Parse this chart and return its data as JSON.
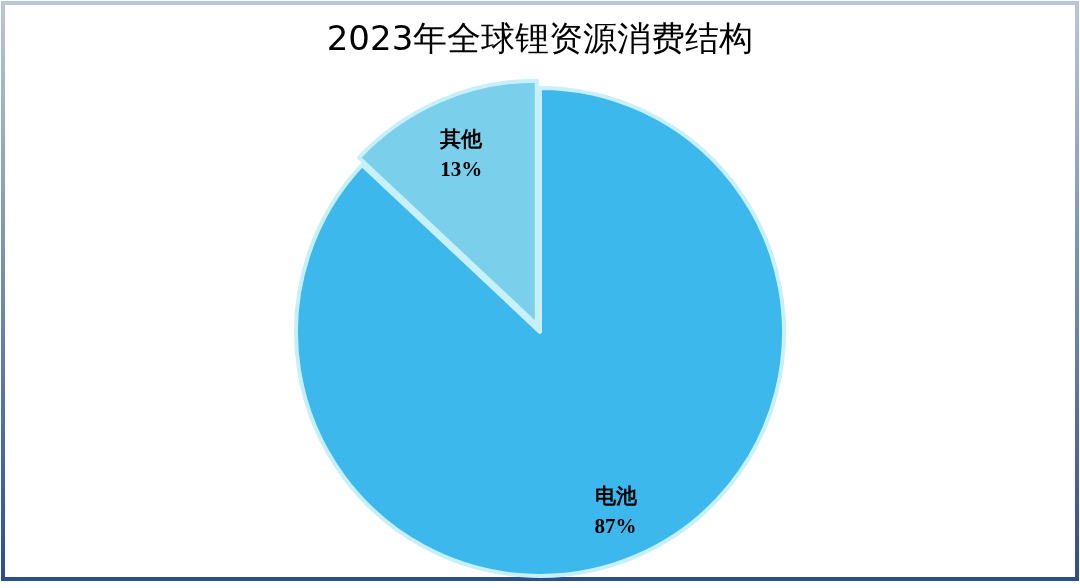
{
  "chart_data": {
    "type": "pie",
    "title": "2023年全球锂资源消费结构",
    "categories": [
      "电池",
      "其他"
    ],
    "values": [
      87,
      13
    ],
    "colors": [
      "#3db8ec",
      "#7ad0ea"
    ],
    "value_labels": [
      "87%",
      "13%"
    ]
  }
}
